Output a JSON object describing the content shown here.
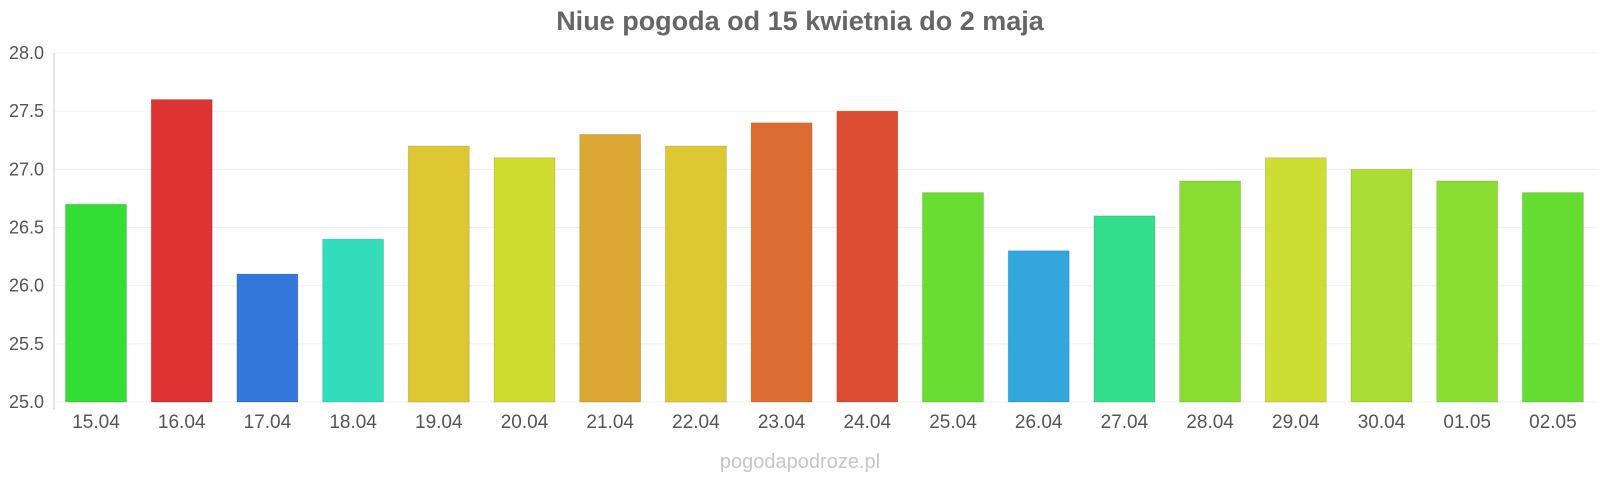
{
  "title": "Niue pogoda od 15 kwietnia do 2 maja",
  "watermark": "pogodapodroze.pl",
  "chart_data": {
    "type": "bar",
    "title": "Niue pogoda od 15 kwietnia do 2 maja",
    "xlabel": "",
    "ylabel": "",
    "ylim": [
      25.0,
      28.0
    ],
    "yticks": [
      "25.0",
      "25.5",
      "26.0",
      "26.5",
      "27.0",
      "27.5",
      "28.0"
    ],
    "grid": true,
    "legend": "none",
    "categories": [
      "15.04",
      "16.04",
      "17.04",
      "18.04",
      "19.04",
      "20.04",
      "21.04",
      "22.04",
      "23.04",
      "24.04",
      "25.04",
      "26.04",
      "27.04",
      "28.04",
      "29.04",
      "30.04",
      "01.05",
      "02.05"
    ],
    "values": [
      26.7,
      27.6,
      26.1,
      26.4,
      27.2,
      27.1,
      27.3,
      27.2,
      27.4,
      27.5,
      26.8,
      26.3,
      26.6,
      26.9,
      27.1,
      27.0,
      26.9,
      26.8
    ],
    "colors": [
      "#33dd33",
      "#dd3333",
      "#3377dd",
      "#33ddbb",
      "#ddc833",
      "#cedd2f",
      "#dda733",
      "#ddc833",
      "#dd6e33",
      "#dd4d33",
      "#6add33",
      "#33a5dd",
      "#33dd8a",
      "#8add33",
      "#cedd33",
      "#aadd33",
      "#8add33",
      "#66dd33"
    ]
  }
}
